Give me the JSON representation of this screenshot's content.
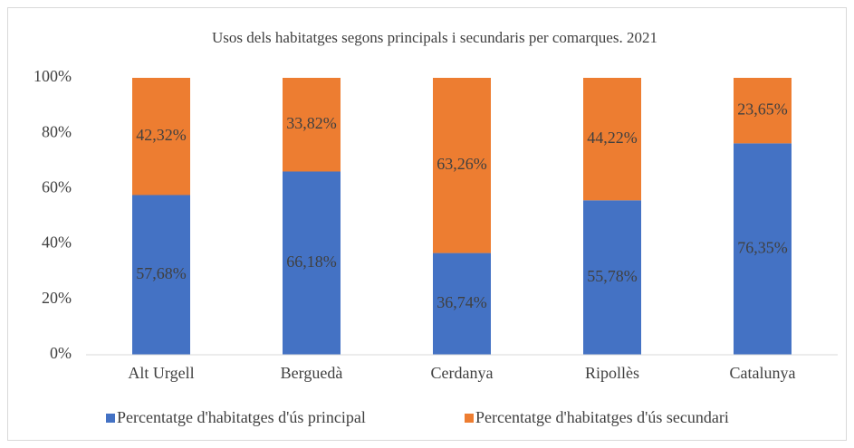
{
  "chart_data": {
    "type": "stacked_bar",
    "title": "Usos dels habitatges segons principals i secundaris per comarques. 2021",
    "categories": [
      "Alt Urgell",
      "Berguedà",
      "Cerdanya",
      "Ripollès",
      "Catalunya"
    ],
    "series": [
      {
        "name": "Percentatge d'habitatges d'ús principal",
        "color": "#4472c4",
        "values": [
          57.68,
          66.18,
          36.74,
          55.78,
          76.35
        ],
        "value_labels": [
          "57,68%",
          "66,18%",
          "36,74%",
          "55,78%",
          "76,35%"
        ]
      },
      {
        "name": "Percentatge d'habitatges d'ús secundari",
        "color": "#ed7d31",
        "values": [
          42.32,
          33.82,
          63.26,
          44.22,
          23.65
        ],
        "value_labels": [
          "42,32%",
          "33,82%",
          "63,26%",
          "44,22%",
          "23,65%"
        ]
      }
    ],
    "ylim": [
      0,
      100
    ],
    "yticks": [
      {
        "value": 0,
        "label": "0%"
      },
      {
        "value": 20,
        "label": "20%"
      },
      {
        "value": 40,
        "label": "40%"
      },
      {
        "value": 60,
        "label": "60%"
      },
      {
        "value": 80,
        "label": "80%"
      },
      {
        "value": 100,
        "label": "100%"
      }
    ],
    "grid": false,
    "legend": "bottom"
  }
}
